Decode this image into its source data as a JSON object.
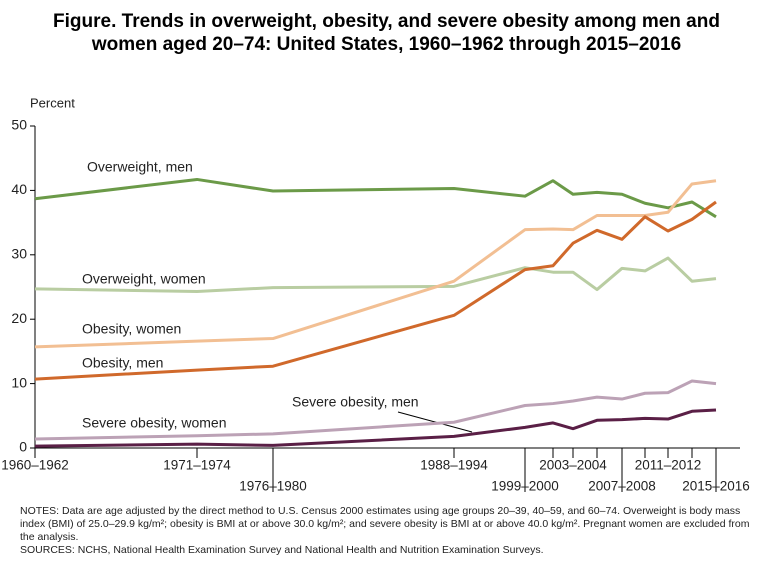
{
  "chart_data": {
    "type": "line",
    "title": "Figure. Trends in overweight, obesity, and severe obesity among men and women aged 20–74: United States, 1960–1962 through 2015–2016",
    "y_label": "Percent",
    "categories": [
      "1960–1962",
      "1971–1974",
      "1976–1980",
      "1988–1994",
      "1999–2000",
      null,
      "2003–2004",
      null,
      "2007–2008",
      null,
      "2011–2012",
      null,
      "2015–2016"
    ],
    "ylim": [
      0,
      50
    ],
    "yticks": [
      0,
      10,
      20,
      30,
      40,
      50
    ],
    "series": [
      {
        "name": "Overweight, men",
        "color": "#6b9a48",
        "values": [
          38.7,
          41.7,
          39.9,
          40.3,
          39.1,
          41.5,
          39.4,
          39.7,
          39.4,
          38.0,
          37.3,
          38.2,
          35.9
        ]
      },
      {
        "name": "Overweight, women",
        "color": "#b9cda2",
        "values": [
          24.7,
          24.3,
          24.9,
          25.1,
          28.0,
          27.3,
          27.3,
          24.6,
          27.9,
          27.5,
          29.5,
          25.9,
          26.3
        ]
      },
      {
        "name": "Obesity, women",
        "color": "#f2bf93",
        "values": [
          15.7,
          16.6,
          17.0,
          25.9,
          33.9,
          34.0,
          33.9,
          36.1,
          36.1,
          36.1,
          36.6,
          41.0,
          41.5
        ]
      },
      {
        "name": "Obesity, men",
        "color": "#d0692b",
        "values": [
          10.7,
          12.1,
          12.7,
          20.6,
          27.7,
          28.3,
          31.8,
          33.8,
          32.4,
          35.9,
          33.7,
          35.5,
          38.2
        ]
      },
      {
        "name": "Severe obesity, women",
        "color": "#bca2b6",
        "values": [
          1.4,
          1.9,
          2.2,
          4.0,
          6.6,
          6.9,
          7.3,
          7.9,
          7.6,
          8.5,
          8.6,
          10.4,
          10.0
        ]
      },
      {
        "name": "Severe obesity, men",
        "color": "#5a1f46",
        "values": [
          0.3,
          0.6,
          0.4,
          1.8,
          3.2,
          3.9,
          3.0,
          4.3,
          4.4,
          4.6,
          4.5,
          5.7,
          5.9
        ]
      }
    ],
    "notes": "NOTES: Data are age adjusted by the direct method to U.S. Census 2000 estimates using age groups 20–39, 40–59, and 60–74. Overweight is body mass index (BMI) of 25.0–29.9 kg/m²; obesity is BMI at or above 30.0 kg/m²; and severe obesity is BMI at or above 40.0 kg/m². Pregnant women are excluded from the analysis.",
    "sources": "SOURCES: NCHS, National Health Examination Survey and National Health and Nutrition Examination Surveys."
  }
}
